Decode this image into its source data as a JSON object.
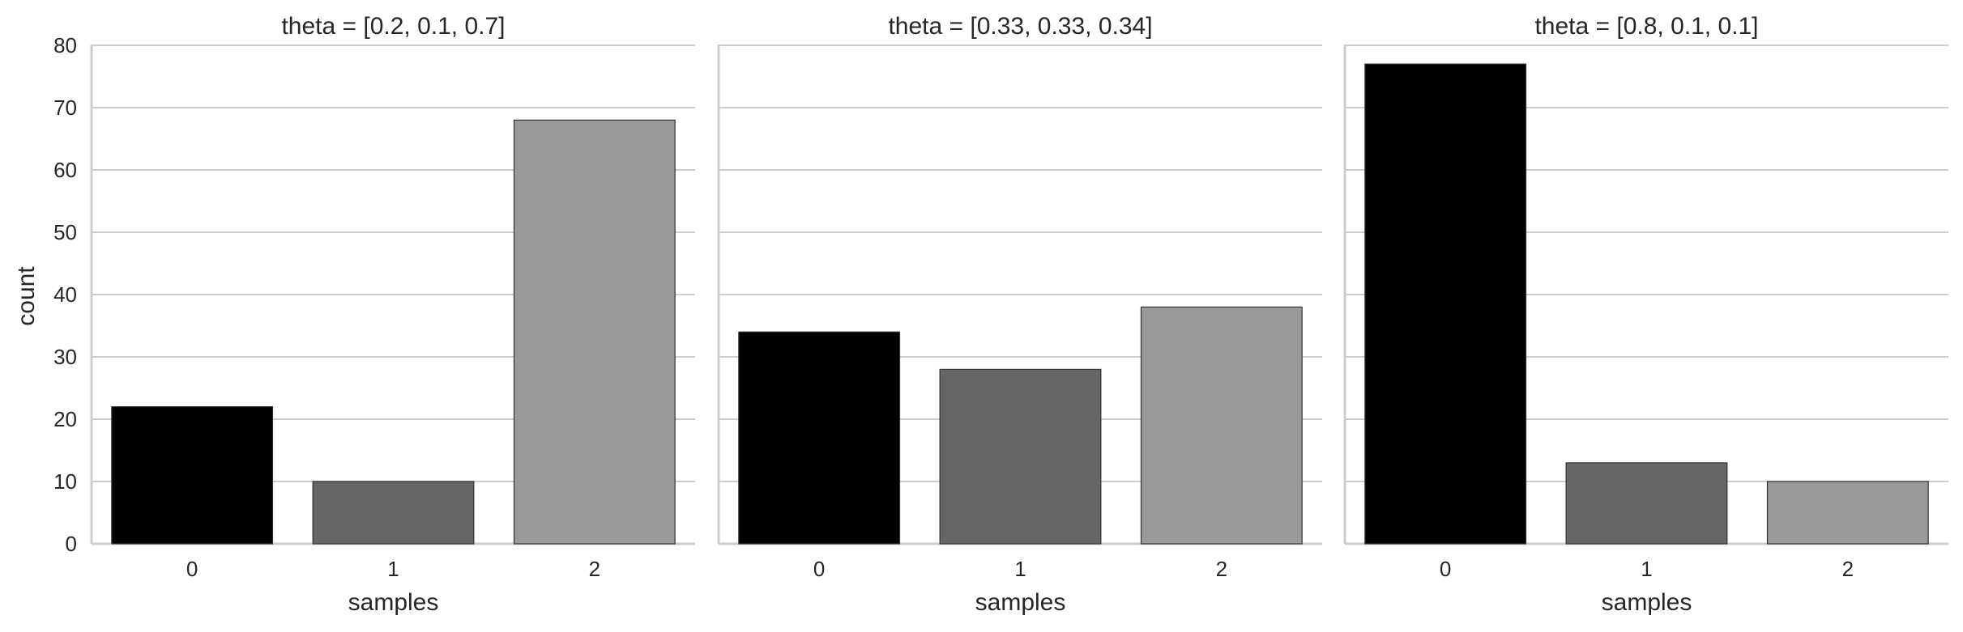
{
  "chart_data": {
    "type": "bar",
    "ylabel": "count",
    "ylim": [
      0,
      80
    ],
    "yticks": [
      0,
      10,
      20,
      30,
      40,
      50,
      60,
      70,
      80
    ],
    "grid": true,
    "colors": [
      "#000000",
      "#666666",
      "#999999"
    ],
    "panels": [
      {
        "title": "theta = [0.2, 0.1, 0.7]",
        "xlabel": "samples",
        "categories": [
          "0",
          "1",
          "2"
        ],
        "values": [
          22,
          10,
          68
        ]
      },
      {
        "title": "theta = [0.33, 0.33, 0.34]",
        "xlabel": "samples",
        "categories": [
          "0",
          "1",
          "2"
        ],
        "values": [
          34,
          28,
          38
        ]
      },
      {
        "title": "theta = [0.8, 0.1, 0.1]",
        "xlabel": "samples",
        "categories": [
          "0",
          "1",
          "2"
        ],
        "values": [
          77,
          13,
          10
        ]
      }
    ]
  }
}
